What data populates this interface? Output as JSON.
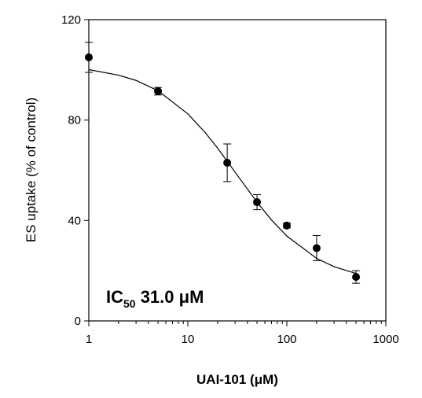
{
  "chart_data": {
    "type": "scatter",
    "xlabel": "UAI-101 (μM)",
    "ylabel": "ES uptake (% of control)",
    "annotation": {
      "main": "IC",
      "sub": "50",
      "rest": " 31.0 μM"
    },
    "x": [
      1,
      5,
      25,
      50,
      100,
      200,
      500
    ],
    "values": [
      105,
      91.5,
      63,
      47.3,
      38,
      29,
      17.5
    ],
    "errors": [
      6,
      1.5,
      7.5,
      3,
      1,
      5,
      2.5
    ],
    "color": "#000000",
    "curve": {
      "x": [
        1,
        2,
        3,
        5,
        10,
        15,
        20,
        25,
        31,
        50,
        70,
        100,
        200,
        300,
        500
      ],
      "values": [
        100.1,
        97.9,
        95.8,
        91.7,
        82.5,
        75.0,
        68.8,
        63.6,
        58.5,
        47.3,
        40.2,
        33.8,
        24.9,
        21.6,
        18.9
      ]
    },
    "xscale": "log",
    "xlim": [
      1,
      1000
    ],
    "xticks": [
      1,
      10,
      100,
      1000
    ],
    "xminor": true,
    "ylim": [
      0,
      120
    ],
    "yticks": [
      0,
      40,
      80,
      120
    ]
  }
}
